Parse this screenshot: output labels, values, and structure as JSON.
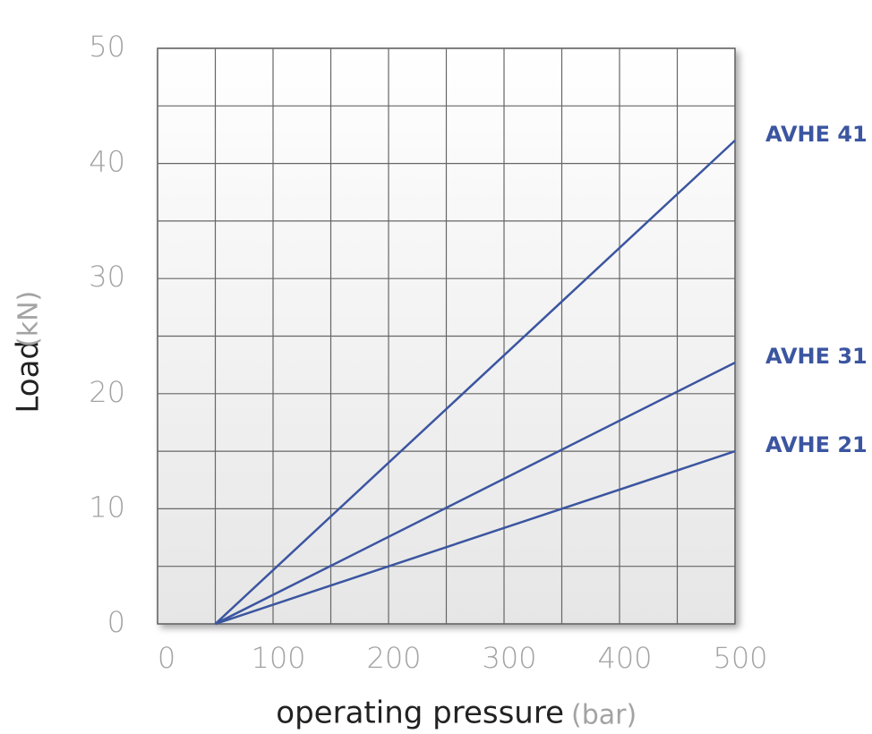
{
  "chart_data": {
    "type": "line",
    "x_label": "operating pressure",
    "x_unit": "(bar)",
    "y_label": "Load",
    "y_unit": "(kN)",
    "xlim": [
      0,
      500
    ],
    "xticks": [
      0,
      100,
      200,
      300,
      400,
      500
    ],
    "ylim": [
      0,
      50
    ],
    "yticks": [
      0,
      10,
      20,
      30,
      40,
      50
    ],
    "x_grid": [
      0,
      50,
      100,
      150,
      200,
      250,
      300,
      350,
      400,
      450,
      500
    ],
    "y_grid": [
      0,
      5,
      10,
      15,
      20,
      25,
      30,
      35,
      40,
      45,
      50
    ],
    "grid": true,
    "series": [
      {
        "name": "AVHE 41",
        "color": "#3b55a0",
        "x": [
          50,
          500
        ],
        "values": [
          0,
          42
        ]
      },
      {
        "name": "AVHE 31",
        "color": "#3b55a0",
        "x": [
          50,
          500
        ],
        "values": [
          0,
          22.7
        ]
      },
      {
        "name": "AVHE 21",
        "color": "#3b55a0",
        "x": [
          50,
          500
        ],
        "values": [
          0,
          15
        ]
      }
    ]
  }
}
